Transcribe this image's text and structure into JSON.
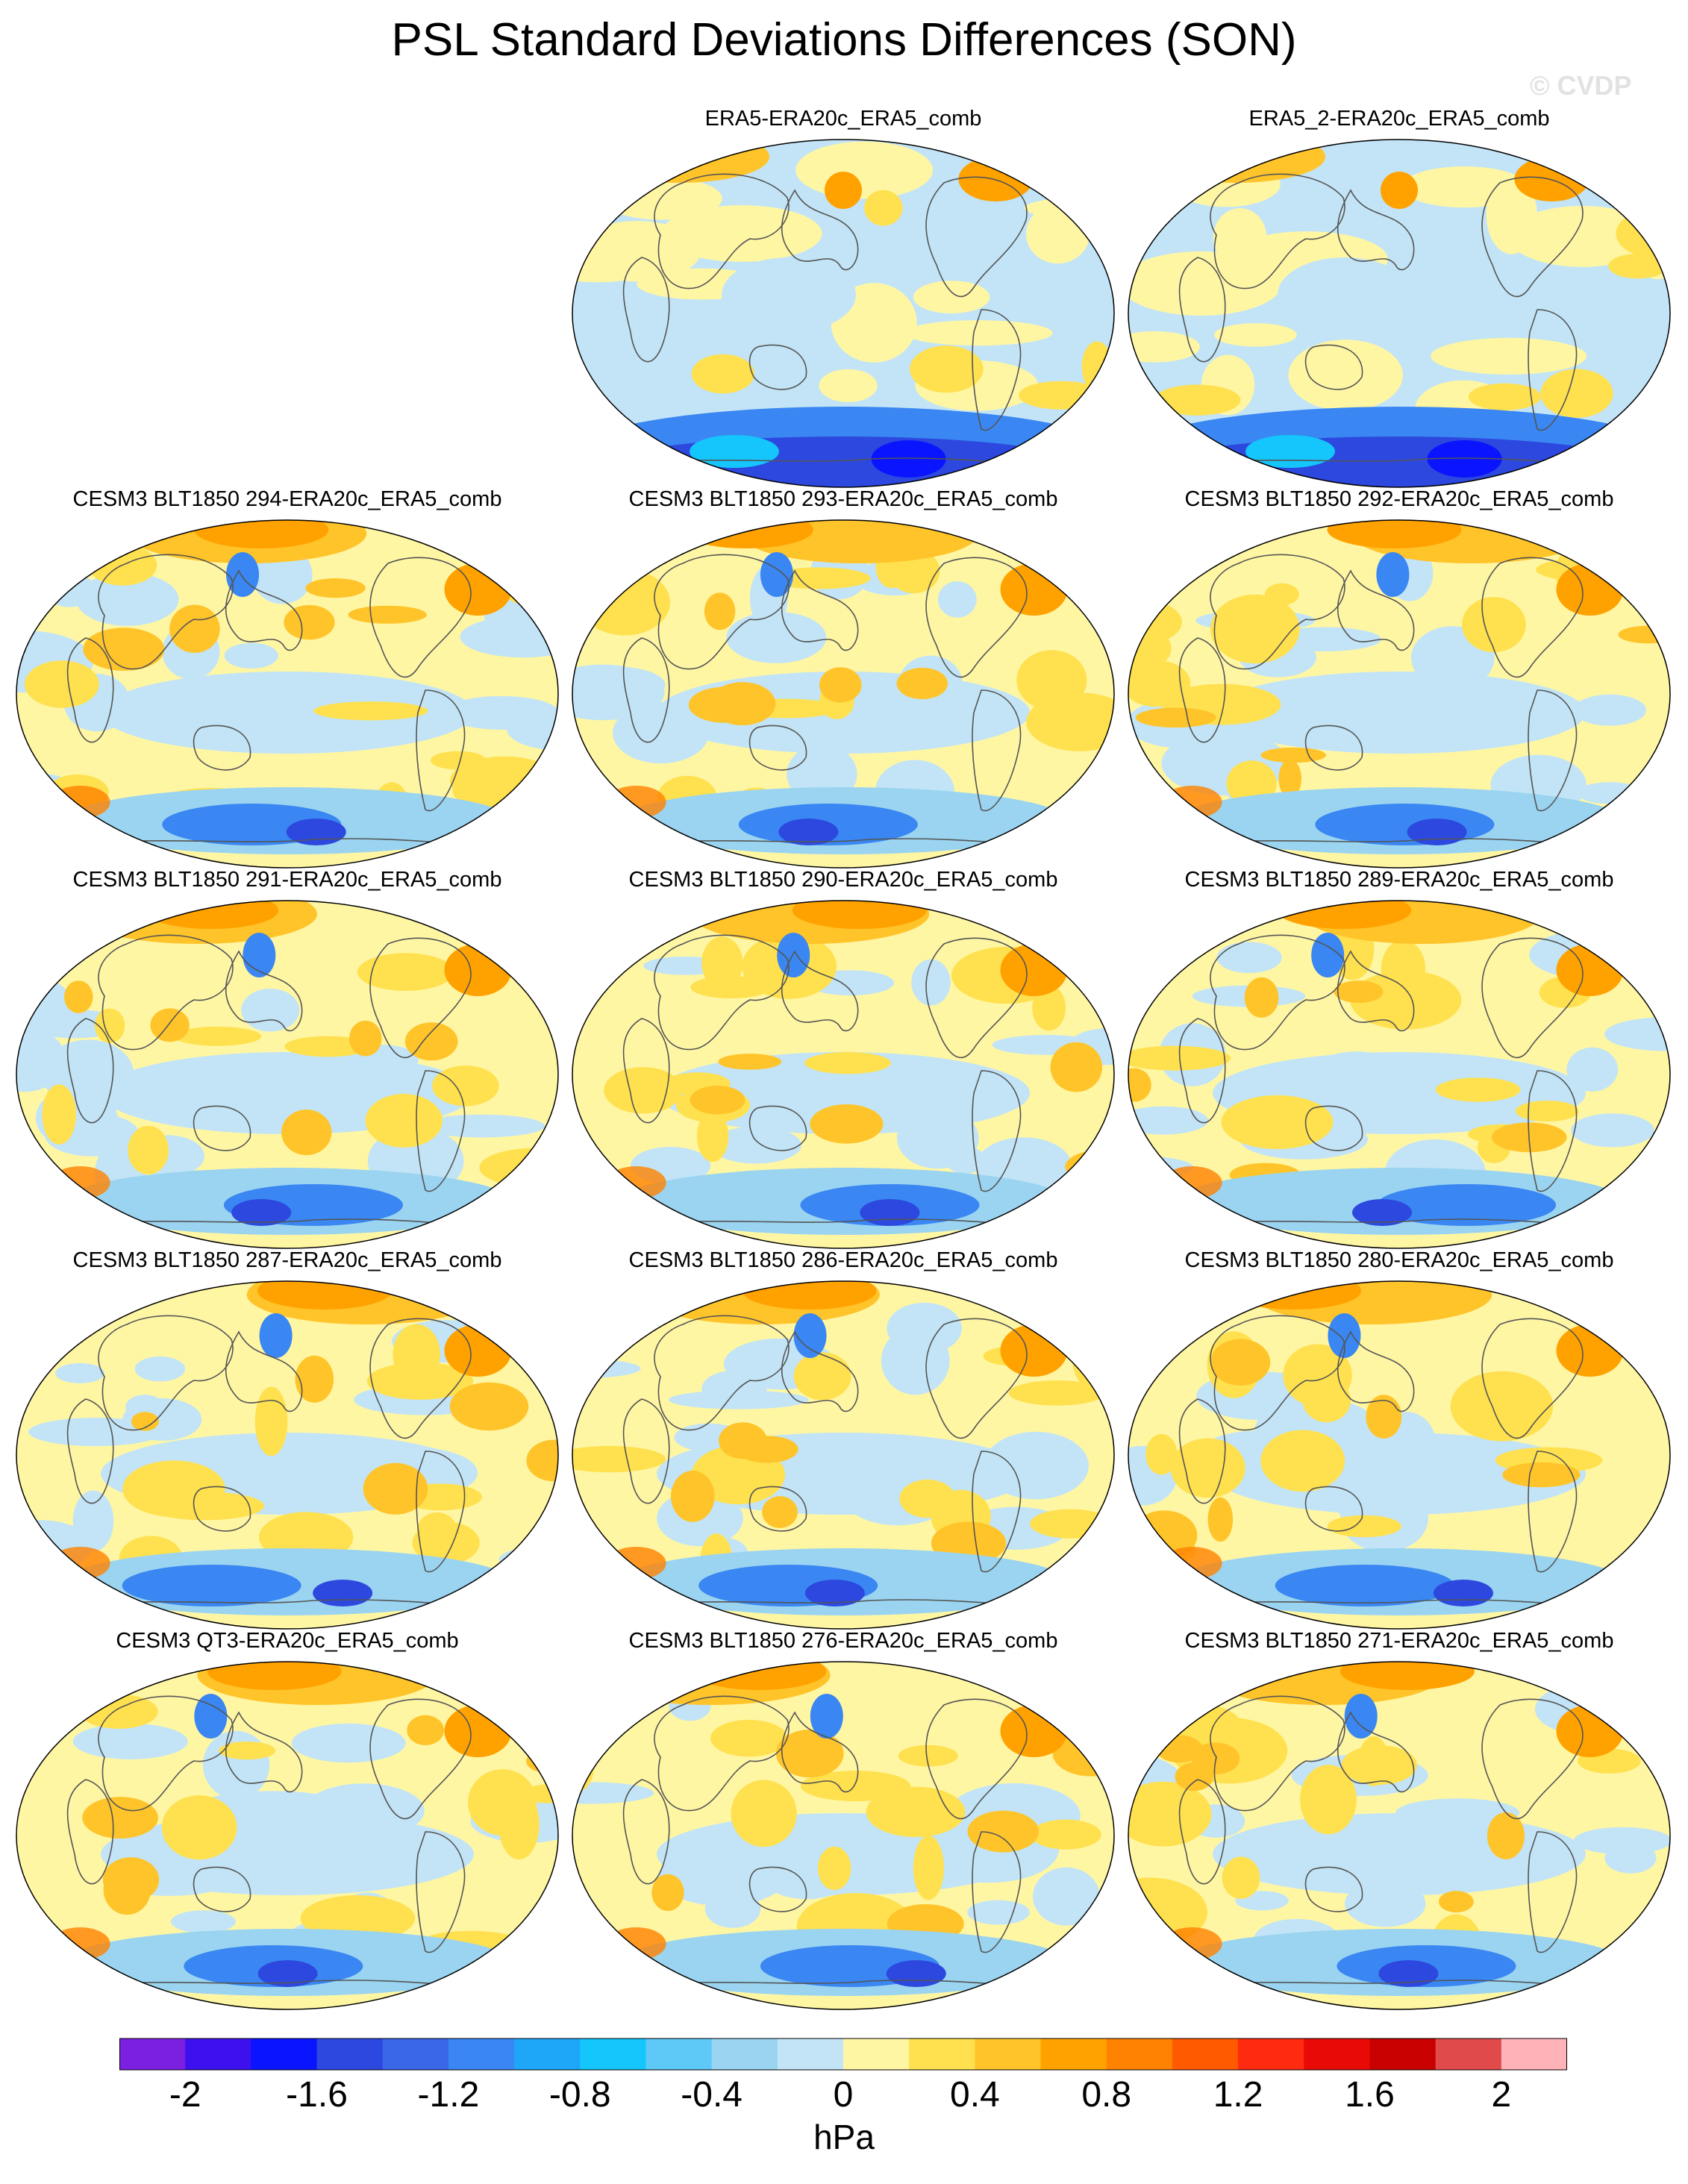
{
  "title": "PSL Standard Deviations Differences (SON)",
  "watermark": "© CVDP",
  "units": "hPa",
  "colorbar": {
    "colors": [
      "#7b1fe0",
      "#3d10ee",
      "#0a14ff",
      "#2c48de",
      "#3a66e8",
      "#3a86f2",
      "#1ea6f8",
      "#14c6fc",
      "#5ec8f6",
      "#9ad4f0",
      "#c2e4f6",
      "#fff6a4",
      "#ffe04e",
      "#ffc42a",
      "#ffa200",
      "#ff8200",
      "#ff5a00",
      "#ff2a10",
      "#e80a06",
      "#c80000",
      "#e04a4a",
      "#ffb2b8"
    ],
    "tick_labels": [
      "-2",
      "-1.6",
      "-1.2",
      "-0.8",
      "-0.4",
      "0",
      "0.4",
      "0.8",
      "1.2",
      "1.6",
      "2"
    ]
  },
  "panels": [
    {
      "title": "ERA5-ERA20c_ERA5_comb",
      "scheme": "era"
    },
    {
      "title": "ERA5_2-ERA20c_ERA5_comb",
      "scheme": "era"
    },
    {
      "title": "CESM3 BLT1850 294-ERA20c_ERA5_comb",
      "scheme": "model"
    },
    {
      "title": "CESM3 BLT1850 293-ERA20c_ERA5_comb",
      "scheme": "model"
    },
    {
      "title": "CESM3 BLT1850 292-ERA20c_ERA5_comb",
      "scheme": "model"
    },
    {
      "title": "CESM3 BLT1850 291-ERA20c_ERA5_comb",
      "scheme": "model"
    },
    {
      "title": "CESM3 BLT1850 290-ERA20c_ERA5_comb",
      "scheme": "model"
    },
    {
      "title": "CESM3 BLT1850 289-ERA20c_ERA5_comb",
      "scheme": "model"
    },
    {
      "title": "CESM3 BLT1850 287-ERA20c_ERA5_comb",
      "scheme": "model"
    },
    {
      "title": "CESM3 BLT1850 286-ERA20c_ERA5_comb",
      "scheme": "model"
    },
    {
      "title": "CESM3 BLT1850 280-ERA20c_ERA5_comb",
      "scheme": "model"
    },
    {
      "title": "CESM3 QT3-ERA20c_ERA5_comb",
      "scheme": "model"
    },
    {
      "title": "CESM3 BLT1850 276-ERA20c_ERA5_comb",
      "scheme": "model"
    },
    {
      "title": "CESM3 BLT1850 271-ERA20c_ERA5_comb",
      "scheme": "model"
    }
  ]
}
